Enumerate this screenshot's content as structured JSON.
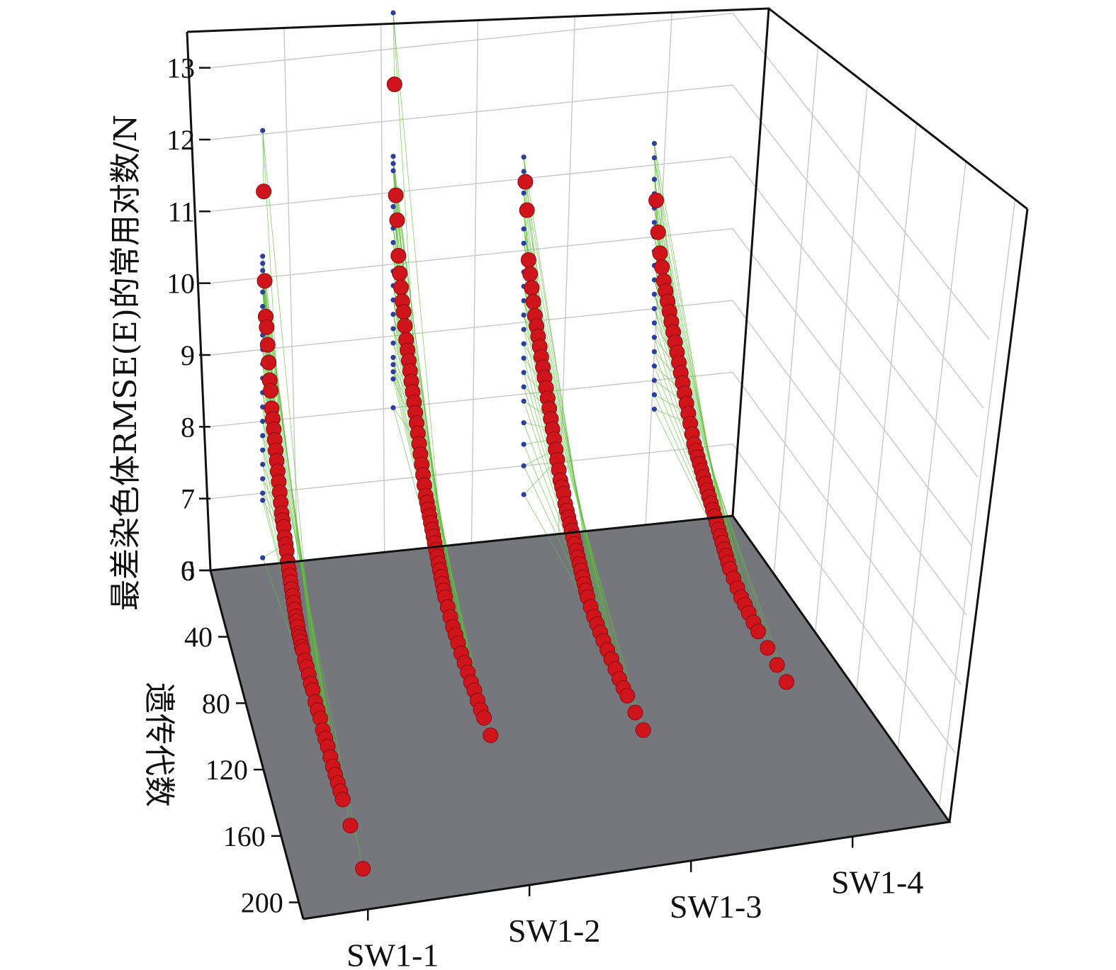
{
  "chart_data": {
    "type": "scatter",
    "title": "",
    "zlabel": "最差染色体RMSE(E)的常用对数/N",
    "ylabel": "遗传代数",
    "xlabel": "",
    "categories": [
      "SW1-1",
      "SW1-2",
      "SW1-3",
      "SW1-4"
    ],
    "zlim": [
      6,
      13.5
    ],
    "z_ticks": [
      6,
      7,
      8,
      9,
      10,
      11,
      12,
      13
    ],
    "ylim": [
      0,
      210
    ],
    "y_ticks": [
      0,
      40,
      80,
      120,
      160,
      200
    ],
    "grid": true,
    "colors": {
      "points": "#d0141c",
      "initial_points": "#2b3f9e",
      "lines": "#5fbf3a",
      "floor": "#75777c"
    },
    "series": [
      {
        "name": "SW1-1",
        "initial_values": [
          12.05,
          10.3,
          10.2,
          10.1,
          10.0,
          9.9,
          9.8,
          9.6,
          9.4,
          9.2,
          9.0,
          8.8,
          8.6,
          8.4,
          8.2,
          8.0,
          7.8,
          7.6,
          7.4,
          7.2,
          7.0,
          6.9,
          6.1
        ],
        "points": [
          {
            "x": 2,
            "z": 11.25
          },
          {
            "x": 4,
            "z": 10.05
          },
          {
            "x": 6,
            "z": 9.6
          },
          {
            "x": 8,
            "z": 9.5
          },
          {
            "x": 10,
            "z": 9.3
          },
          {
            "x": 12,
            "z": 9.1
          },
          {
            "x": 14,
            "z": 8.9
          },
          {
            "x": 16,
            "z": 8.8
          },
          {
            "x": 18,
            "z": 8.6
          },
          {
            "x": 20,
            "z": 8.5
          },
          {
            "x": 22,
            "z": 8.4
          },
          {
            "x": 24,
            "z": 8.3
          },
          {
            "x": 26,
            "z": 8.2
          },
          {
            "x": 28,
            "z": 8.1
          },
          {
            "x": 30,
            "z": 8.0
          },
          {
            "x": 32,
            "z": 7.9
          },
          {
            "x": 34,
            "z": 7.8
          },
          {
            "x": 36,
            "z": 7.7
          },
          {
            "x": 38,
            "z": 7.6
          },
          {
            "x": 40,
            "z": 7.55
          },
          {
            "x": 42,
            "z": 7.5
          },
          {
            "x": 44,
            "z": 7.4
          },
          {
            "x": 46,
            "z": 7.35
          },
          {
            "x": 48,
            "z": 7.3
          },
          {
            "x": 50,
            "z": 7.2
          },
          {
            "x": 52,
            "z": 7.15
          },
          {
            "x": 54,
            "z": 7.1
          },
          {
            "x": 56,
            "z": 7.05
          },
          {
            "x": 58,
            "z": 7.0
          },
          {
            "x": 60,
            "z": 6.95
          },
          {
            "x": 62,
            "z": 6.9
          },
          {
            "x": 64,
            "z": 6.85
          },
          {
            "x": 66,
            "z": 6.8
          },
          {
            "x": 68,
            "z": 6.78
          },
          {
            "x": 70,
            "z": 6.75
          },
          {
            "x": 72,
            "z": 6.7
          },
          {
            "x": 74,
            "z": 6.7
          },
          {
            "x": 76,
            "z": 6.68
          },
          {
            "x": 78,
            "z": 6.65
          },
          {
            "x": 80,
            "z": 6.65
          },
          {
            "x": 84,
            "z": 6.6
          },
          {
            "x": 88,
            "z": 6.6
          },
          {
            "x": 92,
            "z": 6.58
          },
          {
            "x": 96,
            "z": 6.55
          },
          {
            "x": 100,
            "z": 6.55
          },
          {
            "x": 105,
            "z": 6.5
          },
          {
            "x": 110,
            "z": 6.5
          },
          {
            "x": 115,
            "z": 6.5
          },
          {
            "x": 120,
            "z": 6.45
          },
          {
            "x": 125,
            "z": 6.45
          },
          {
            "x": 130,
            "z": 6.45
          },
          {
            "x": 135,
            "z": 6.42
          },
          {
            "x": 140,
            "z": 6.4
          },
          {
            "x": 145,
            "z": 6.4
          },
          {
            "x": 150,
            "z": 6.4
          },
          {
            "x": 155,
            "z": 6.4
          },
          {
            "x": 160,
            "z": 6.4
          },
          {
            "x": 175,
            "z": 6.38
          },
          {
            "x": 200,
            "z": 6.35
          }
        ]
      },
      {
        "name": "SW1-2",
        "initial_values": [
          13.5,
          11.5,
          11.4,
          11.3,
          11.0,
          10.8,
          10.5,
          10.3,
          10.1,
          9.9,
          9.7,
          9.5,
          9.3,
          9.1,
          8.9,
          8.7,
          8.6,
          8.5,
          8.4,
          8.0
        ],
        "points": [
          {
            "x": 2,
            "z": 12.55
          },
          {
            "x": 4,
            "z": 11.05
          },
          {
            "x": 6,
            "z": 10.75
          },
          {
            "x": 8,
            "z": 10.3
          },
          {
            "x": 10,
            "z": 10.1
          },
          {
            "x": 12,
            "z": 9.95
          },
          {
            "x": 14,
            "z": 9.8
          },
          {
            "x": 16,
            "z": 9.7
          },
          {
            "x": 18,
            "z": 9.55
          },
          {
            "x": 20,
            "z": 9.4
          },
          {
            "x": 22,
            "z": 9.3
          },
          {
            "x": 24,
            "z": 9.2
          },
          {
            "x": 26,
            "z": 9.1
          },
          {
            "x": 28,
            "z": 9.0
          },
          {
            "x": 30,
            "z": 8.9
          },
          {
            "x": 32,
            "z": 8.8
          },
          {
            "x": 34,
            "z": 8.7
          },
          {
            "x": 36,
            "z": 8.6
          },
          {
            "x": 38,
            "z": 8.5
          },
          {
            "x": 40,
            "z": 8.4
          },
          {
            "x": 42,
            "z": 8.3
          },
          {
            "x": 44,
            "z": 8.2
          },
          {
            "x": 46,
            "z": 8.1
          },
          {
            "x": 48,
            "z": 8.0
          },
          {
            "x": 50,
            "z": 7.9
          },
          {
            "x": 52,
            "z": 7.85
          },
          {
            "x": 54,
            "z": 7.8
          },
          {
            "x": 56,
            "z": 7.75
          },
          {
            "x": 58,
            "z": 7.7
          },
          {
            "x": 60,
            "z": 7.65
          },
          {
            "x": 62,
            "z": 7.6
          },
          {
            "x": 64,
            "z": 7.55
          },
          {
            "x": 66,
            "z": 7.5
          },
          {
            "x": 68,
            "z": 7.45
          },
          {
            "x": 70,
            "z": 7.4
          },
          {
            "x": 72,
            "z": 7.35
          },
          {
            "x": 74,
            "z": 7.3
          },
          {
            "x": 76,
            "z": 7.25
          },
          {
            "x": 78,
            "z": 7.2
          },
          {
            "x": 80,
            "z": 7.15
          },
          {
            "x": 84,
            "z": 7.1
          },
          {
            "x": 88,
            "z": 7.05
          },
          {
            "x": 92,
            "z": 7.0
          },
          {
            "x": 96,
            "z": 6.98
          },
          {
            "x": 100,
            "z": 6.95
          },
          {
            "x": 105,
            "z": 6.92
          },
          {
            "x": 110,
            "z": 6.9
          },
          {
            "x": 115,
            "z": 6.88
          },
          {
            "x": 120,
            "z": 6.85
          },
          {
            "x": 125,
            "z": 6.85
          },
          {
            "x": 130,
            "z": 6.82
          },
          {
            "x": 135,
            "z": 6.8
          },
          {
            "x": 140,
            "z": 6.8
          },
          {
            "x": 150,
            "z": 6.78
          }
        ]
      },
      {
        "name": "SW1-3",
        "initial_values": [
          11.3,
          11.1,
          10.8,
          10.5,
          10.3,
          10.1,
          9.9,
          9.7,
          9.5,
          9.3,
          9.1,
          8.9,
          8.7,
          8.5,
          8.3,
          8.1,
          7.9,
          7.6,
          7.3,
          7.0,
          6.6
        ],
        "points": [
          {
            "x": 2,
            "z": 11.0
          },
          {
            "x": 4,
            "z": 10.65
          },
          {
            "x": 6,
            "z": 10.0
          },
          {
            "x": 8,
            "z": 9.85
          },
          {
            "x": 10,
            "z": 9.7
          },
          {
            "x": 12,
            "z": 9.55
          },
          {
            "x": 14,
            "z": 9.4
          },
          {
            "x": 16,
            "z": 9.3
          },
          {
            "x": 18,
            "z": 9.2
          },
          {
            "x": 20,
            "z": 9.1
          },
          {
            "x": 22,
            "z": 9.0
          },
          {
            "x": 24,
            "z": 8.9
          },
          {
            "x": 26,
            "z": 8.8
          },
          {
            "x": 28,
            "z": 8.7
          },
          {
            "x": 30,
            "z": 8.6
          },
          {
            "x": 32,
            "z": 8.5
          },
          {
            "x": 34,
            "z": 8.4
          },
          {
            "x": 36,
            "z": 8.3
          },
          {
            "x": 38,
            "z": 8.2
          },
          {
            "x": 40,
            "z": 8.1
          },
          {
            "x": 42,
            "z": 8.0
          },
          {
            "x": 44,
            "z": 7.9
          },
          {
            "x": 46,
            "z": 7.8
          },
          {
            "x": 48,
            "z": 7.75
          },
          {
            "x": 50,
            "z": 7.7
          },
          {
            "x": 52,
            "z": 7.6
          },
          {
            "x": 54,
            "z": 7.55
          },
          {
            "x": 56,
            "z": 7.5
          },
          {
            "x": 58,
            "z": 7.45
          },
          {
            "x": 60,
            "z": 7.4
          },
          {
            "x": 62,
            "z": 7.35
          },
          {
            "x": 64,
            "z": 7.3
          },
          {
            "x": 66,
            "z": 7.25
          },
          {
            "x": 68,
            "z": 7.2
          },
          {
            "x": 70,
            "z": 7.15
          },
          {
            "x": 72,
            "z": 7.1
          },
          {
            "x": 74,
            "z": 7.05
          },
          {
            "x": 76,
            "z": 7.0
          },
          {
            "x": 78,
            "z": 6.95
          },
          {
            "x": 80,
            "z": 6.9
          },
          {
            "x": 84,
            "z": 6.85
          },
          {
            "x": 88,
            "z": 6.8
          },
          {
            "x": 92,
            "z": 6.78
          },
          {
            "x": 96,
            "z": 6.75
          },
          {
            "x": 100,
            "z": 6.72
          },
          {
            "x": 105,
            "z": 6.7
          },
          {
            "x": 110,
            "z": 6.68
          },
          {
            "x": 115,
            "z": 6.65
          },
          {
            "x": 120,
            "z": 6.62
          },
          {
            "x": 125,
            "z": 6.6
          },
          {
            "x": 130,
            "z": 6.6
          },
          {
            "x": 140,
            "z": 6.58
          },
          {
            "x": 150,
            "z": 6.55
          }
        ]
      },
      {
        "name": "SW1-4",
        "initial_values": [
          11.3,
          11.1,
          10.8,
          10.6,
          10.4,
          10.2,
          10.0,
          9.8,
          9.6,
          9.4,
          9.2,
          9.0,
          8.8,
          8.6,
          8.4,
          8.2,
          8.0,
          7.8,
          7.6
        ],
        "points": [
          {
            "x": 2,
            "z": 10.55
          },
          {
            "x": 4,
            "z": 10.15
          },
          {
            "x": 6,
            "z": 9.9
          },
          {
            "x": 8,
            "z": 9.75
          },
          {
            "x": 10,
            "z": 9.6
          },
          {
            "x": 12,
            "z": 9.5
          },
          {
            "x": 14,
            "z": 9.4
          },
          {
            "x": 16,
            "z": 9.3
          },
          {
            "x": 18,
            "z": 9.2
          },
          {
            "x": 20,
            "z": 9.1
          },
          {
            "x": 22,
            "z": 9.0
          },
          {
            "x": 24,
            "z": 8.9
          },
          {
            "x": 26,
            "z": 8.8
          },
          {
            "x": 28,
            "z": 8.7
          },
          {
            "x": 30,
            "z": 8.6
          },
          {
            "x": 32,
            "z": 8.5
          },
          {
            "x": 34,
            "z": 8.4
          },
          {
            "x": 36,
            "z": 8.3
          },
          {
            "x": 38,
            "z": 8.2
          },
          {
            "x": 40,
            "z": 8.1
          },
          {
            "x": 42,
            "z": 8.0
          },
          {
            "x": 44,
            "z": 7.95
          },
          {
            "x": 46,
            "z": 7.9
          },
          {
            "x": 48,
            "z": 7.85
          },
          {
            "x": 50,
            "z": 7.8
          },
          {
            "x": 52,
            "z": 7.75
          },
          {
            "x": 54,
            "z": 7.7
          },
          {
            "x": 56,
            "z": 7.65
          },
          {
            "x": 58,
            "z": 7.6
          },
          {
            "x": 60,
            "z": 7.55
          },
          {
            "x": 62,
            "z": 7.5
          },
          {
            "x": 64,
            "z": 7.45
          },
          {
            "x": 66,
            "z": 7.4
          },
          {
            "x": 68,
            "z": 7.35
          },
          {
            "x": 70,
            "z": 7.3
          },
          {
            "x": 72,
            "z": 7.25
          },
          {
            "x": 74,
            "z": 7.2
          },
          {
            "x": 76,
            "z": 7.15
          },
          {
            "x": 78,
            "z": 7.1
          },
          {
            "x": 80,
            "z": 7.05
          },
          {
            "x": 84,
            "z": 7.0
          },
          {
            "x": 88,
            "z": 6.95
          },
          {
            "x": 92,
            "z": 6.9
          },
          {
            "x": 96,
            "z": 6.88
          },
          {
            "x": 100,
            "z": 6.85
          },
          {
            "x": 105,
            "z": 6.82
          },
          {
            "x": 110,
            "z": 6.8
          },
          {
            "x": 120,
            "z": 6.78
          },
          {
            "x": 130,
            "z": 6.75
          },
          {
            "x": 140,
            "z": 6.72
          }
        ]
      }
    ]
  }
}
